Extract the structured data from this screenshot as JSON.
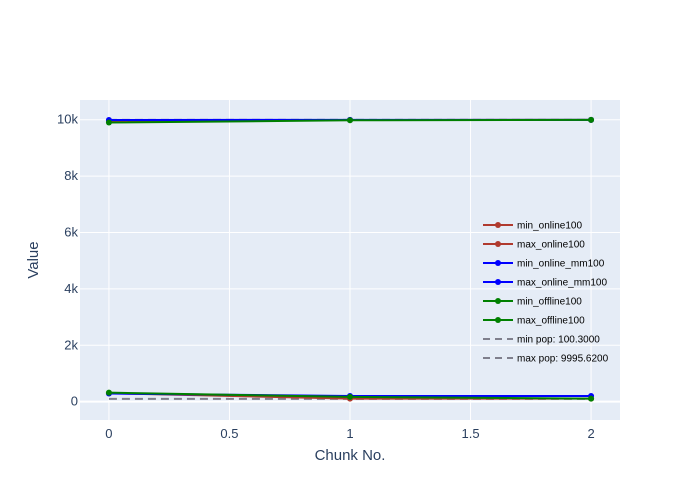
{
  "chart_data": {
    "type": "line",
    "xlabel": "Chunk No.",
    "ylabel": "Value",
    "x": [
      0,
      1,
      2
    ],
    "xlim": [
      -0.12,
      2.12
    ],
    "ylim": [
      -650,
      10700
    ],
    "x_ticks": [
      0,
      0.5,
      1,
      1.5,
      2
    ],
    "x_tick_labels": [
      "0",
      "0.5",
      "1",
      "1.5",
      "2"
    ],
    "y_ticks": [
      0,
      2000,
      4000,
      6000,
      8000,
      10000
    ],
    "y_tick_labels": [
      "0",
      "2k",
      "4k",
      "6k",
      "8k",
      "10k"
    ],
    "grid": true,
    "legend_position": "right",
    "series": [
      {
        "name": "min_online100",
        "values": [
          300,
          110,
          110
        ],
        "color": "#b03a2e",
        "style": "solid",
        "markers": true
      },
      {
        "name": "max_online100",
        "values": [
          9960,
          9990,
          9995
        ],
        "color": "#b03a2e",
        "style": "solid",
        "markers": true
      },
      {
        "name": "min_online_mm100",
        "values": [
          290,
          200,
          200
        ],
        "color": "#0000ff",
        "style": "solid",
        "markers": true
      },
      {
        "name": "max_online_mm100",
        "values": [
          9990,
          9995,
          9995
        ],
        "color": "#0000ff",
        "style": "solid",
        "markers": true
      },
      {
        "name": "min_offline100",
        "values": [
          320,
          170,
          110
        ],
        "color": "#008000",
        "style": "solid",
        "markers": true
      },
      {
        "name": "max_offline100",
        "values": [
          9900,
          9980,
          9995
        ],
        "color": "#008000",
        "style": "solid",
        "markers": true
      },
      {
        "name": "min pop: 100.3000",
        "values": [
          100.3,
          100.3,
          100.3
        ],
        "color": "#7f7f8c",
        "style": "dash",
        "markers": false
      },
      {
        "name": "max pop: 9995.6200",
        "values": [
          9995.62,
          9995.62,
          9995.62
        ],
        "color": "#7f7f8c",
        "style": "dash",
        "markers": false
      }
    ]
  }
}
